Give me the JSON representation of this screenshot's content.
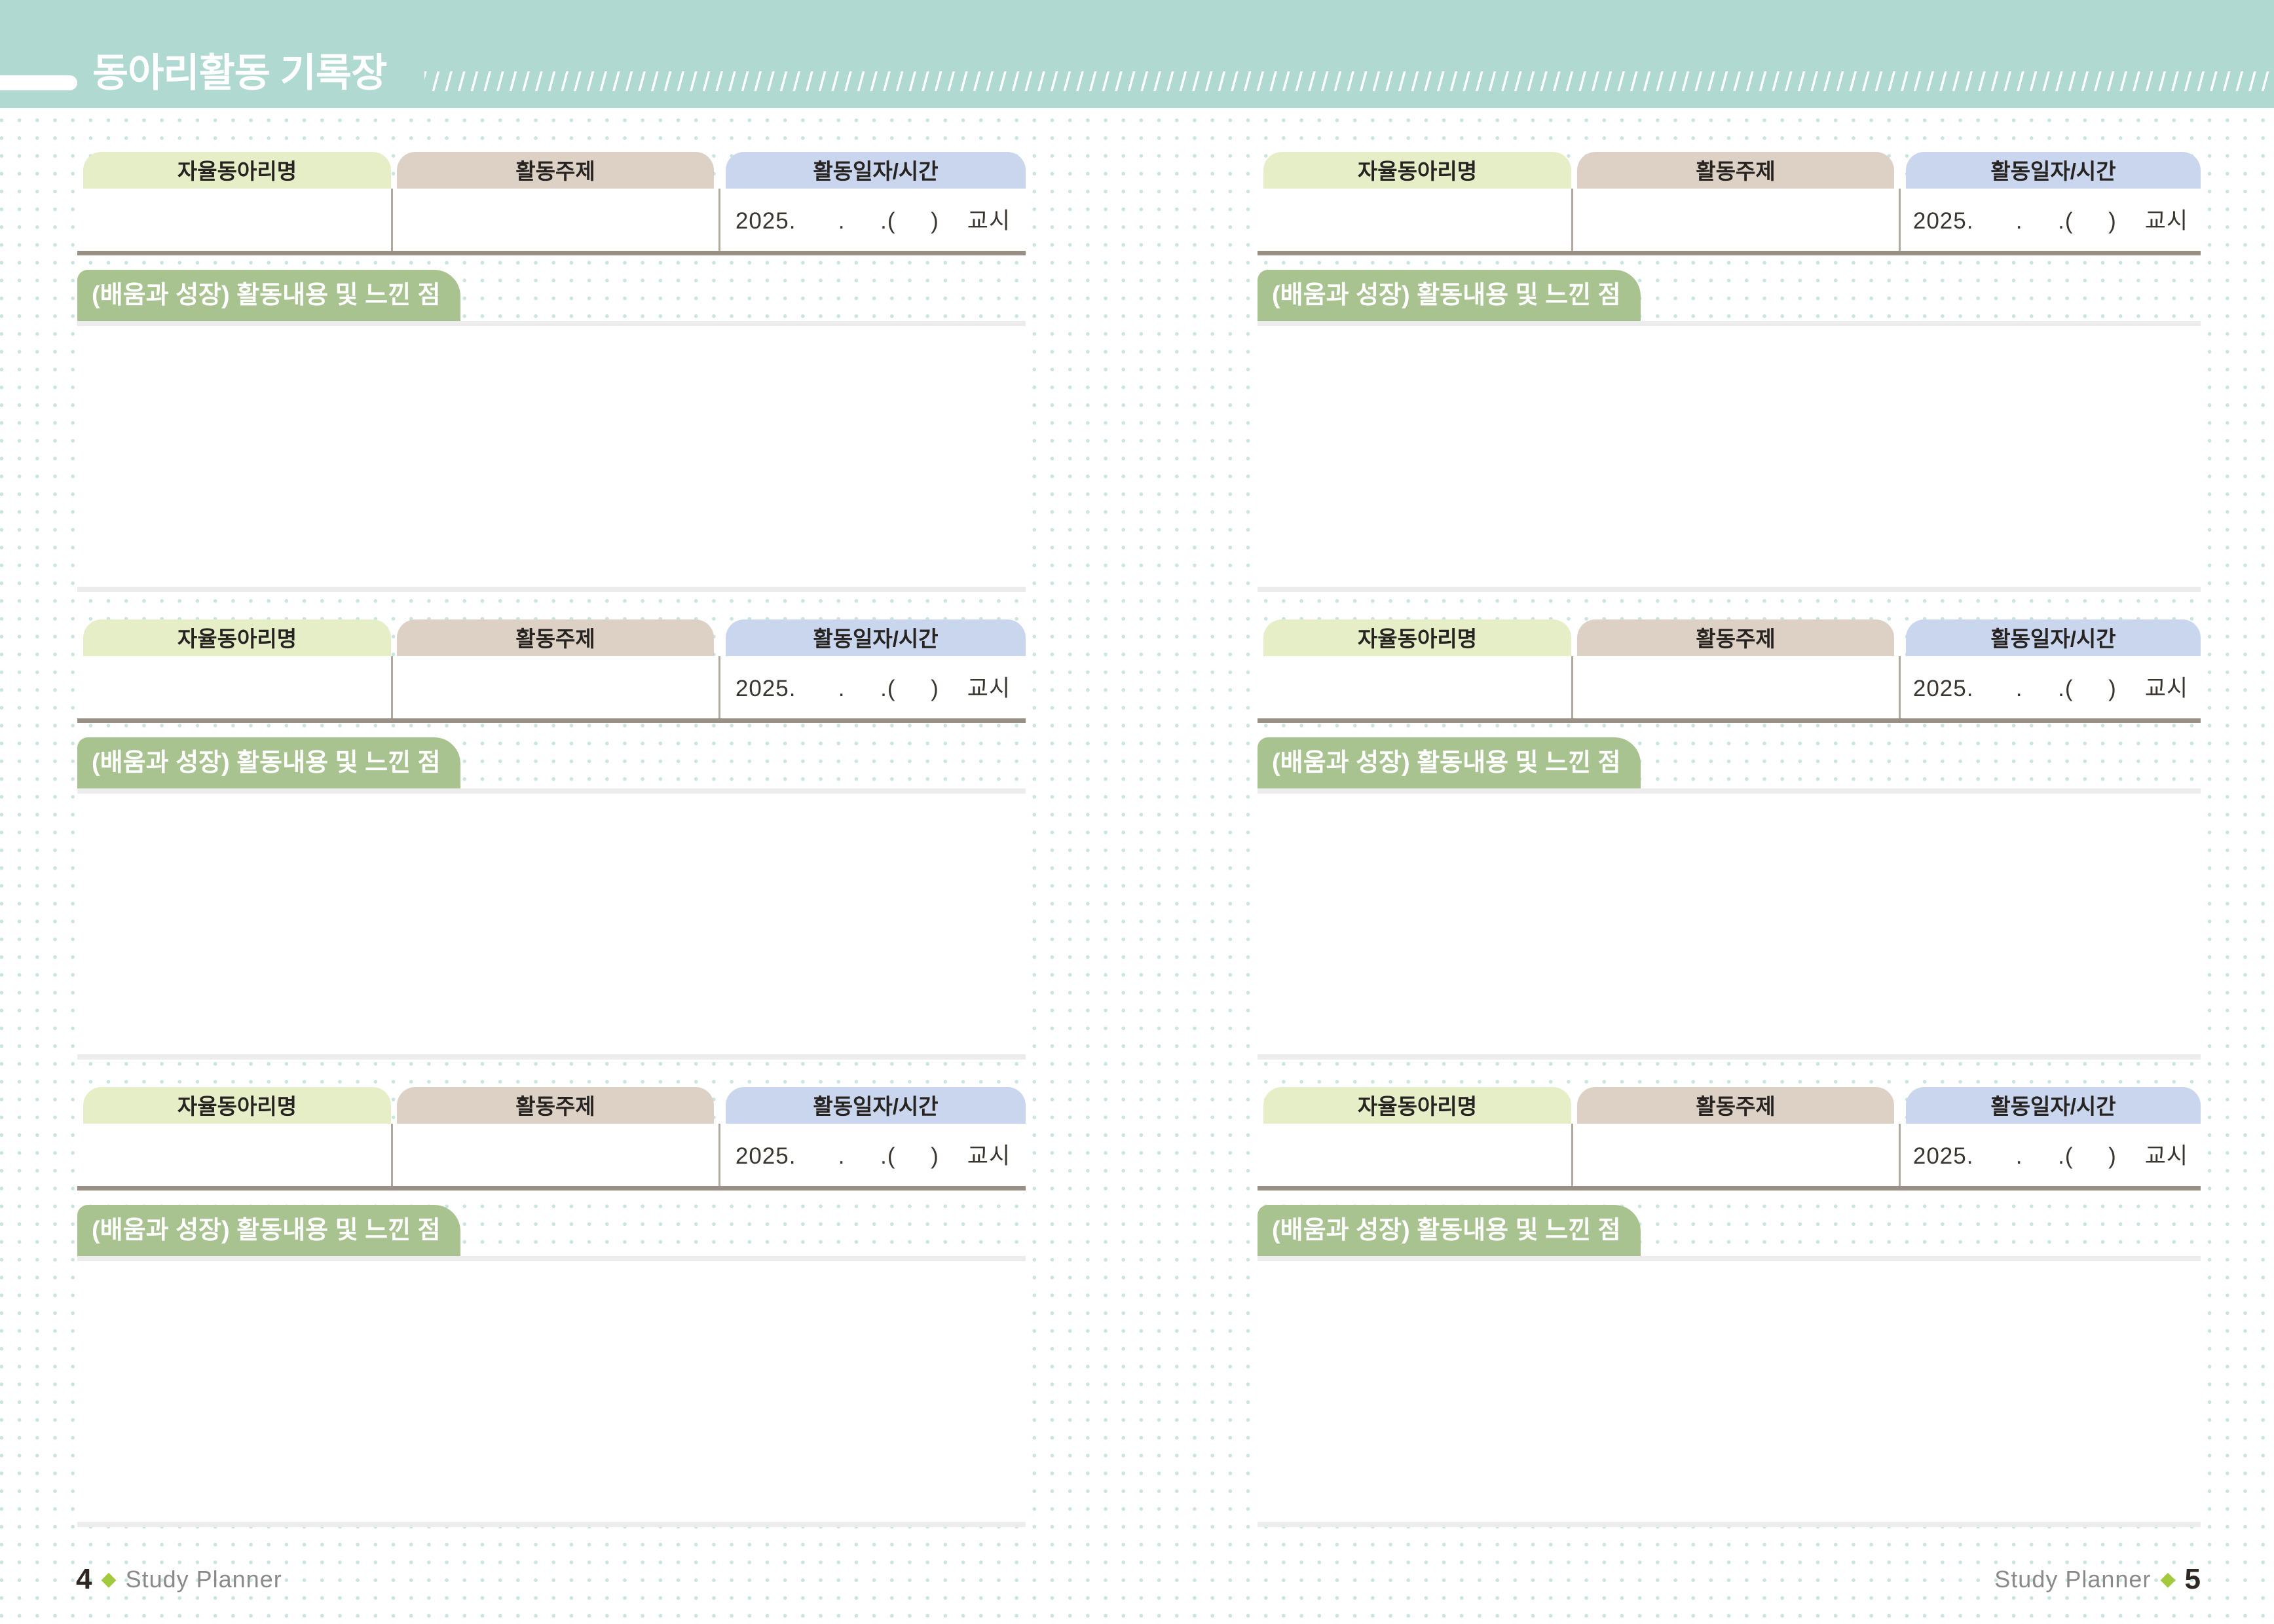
{
  "header": {
    "title": "동아리활동 기록장"
  },
  "record_block": {
    "club_name_label": "자율동아리명",
    "topic_label": "활동주제",
    "datetime_label": "활동일자/시간",
    "date_line": "2025.      .     .(     )    교시",
    "notes_label": "(배움과 성장) 활동내용 및 느낀 점"
  },
  "footer": {
    "brand": "Study Planner",
    "separator_icon": "◆",
    "left_page_number": "4",
    "right_page_number": "5"
  },
  "colors": {
    "header_band": "#b0d9d2",
    "background_dots": "#c9e5e0",
    "tab_club_name": "#e6eec8",
    "tab_topic": "#ddd1c6",
    "tab_datetime": "#c9d6ee",
    "notes_label_bg": "#a8c290",
    "row_bottom_border": "#998f84",
    "cell_divider": "#b2a89d",
    "content_border": "#ececec",
    "footer_diamond": "#a3c93e"
  }
}
